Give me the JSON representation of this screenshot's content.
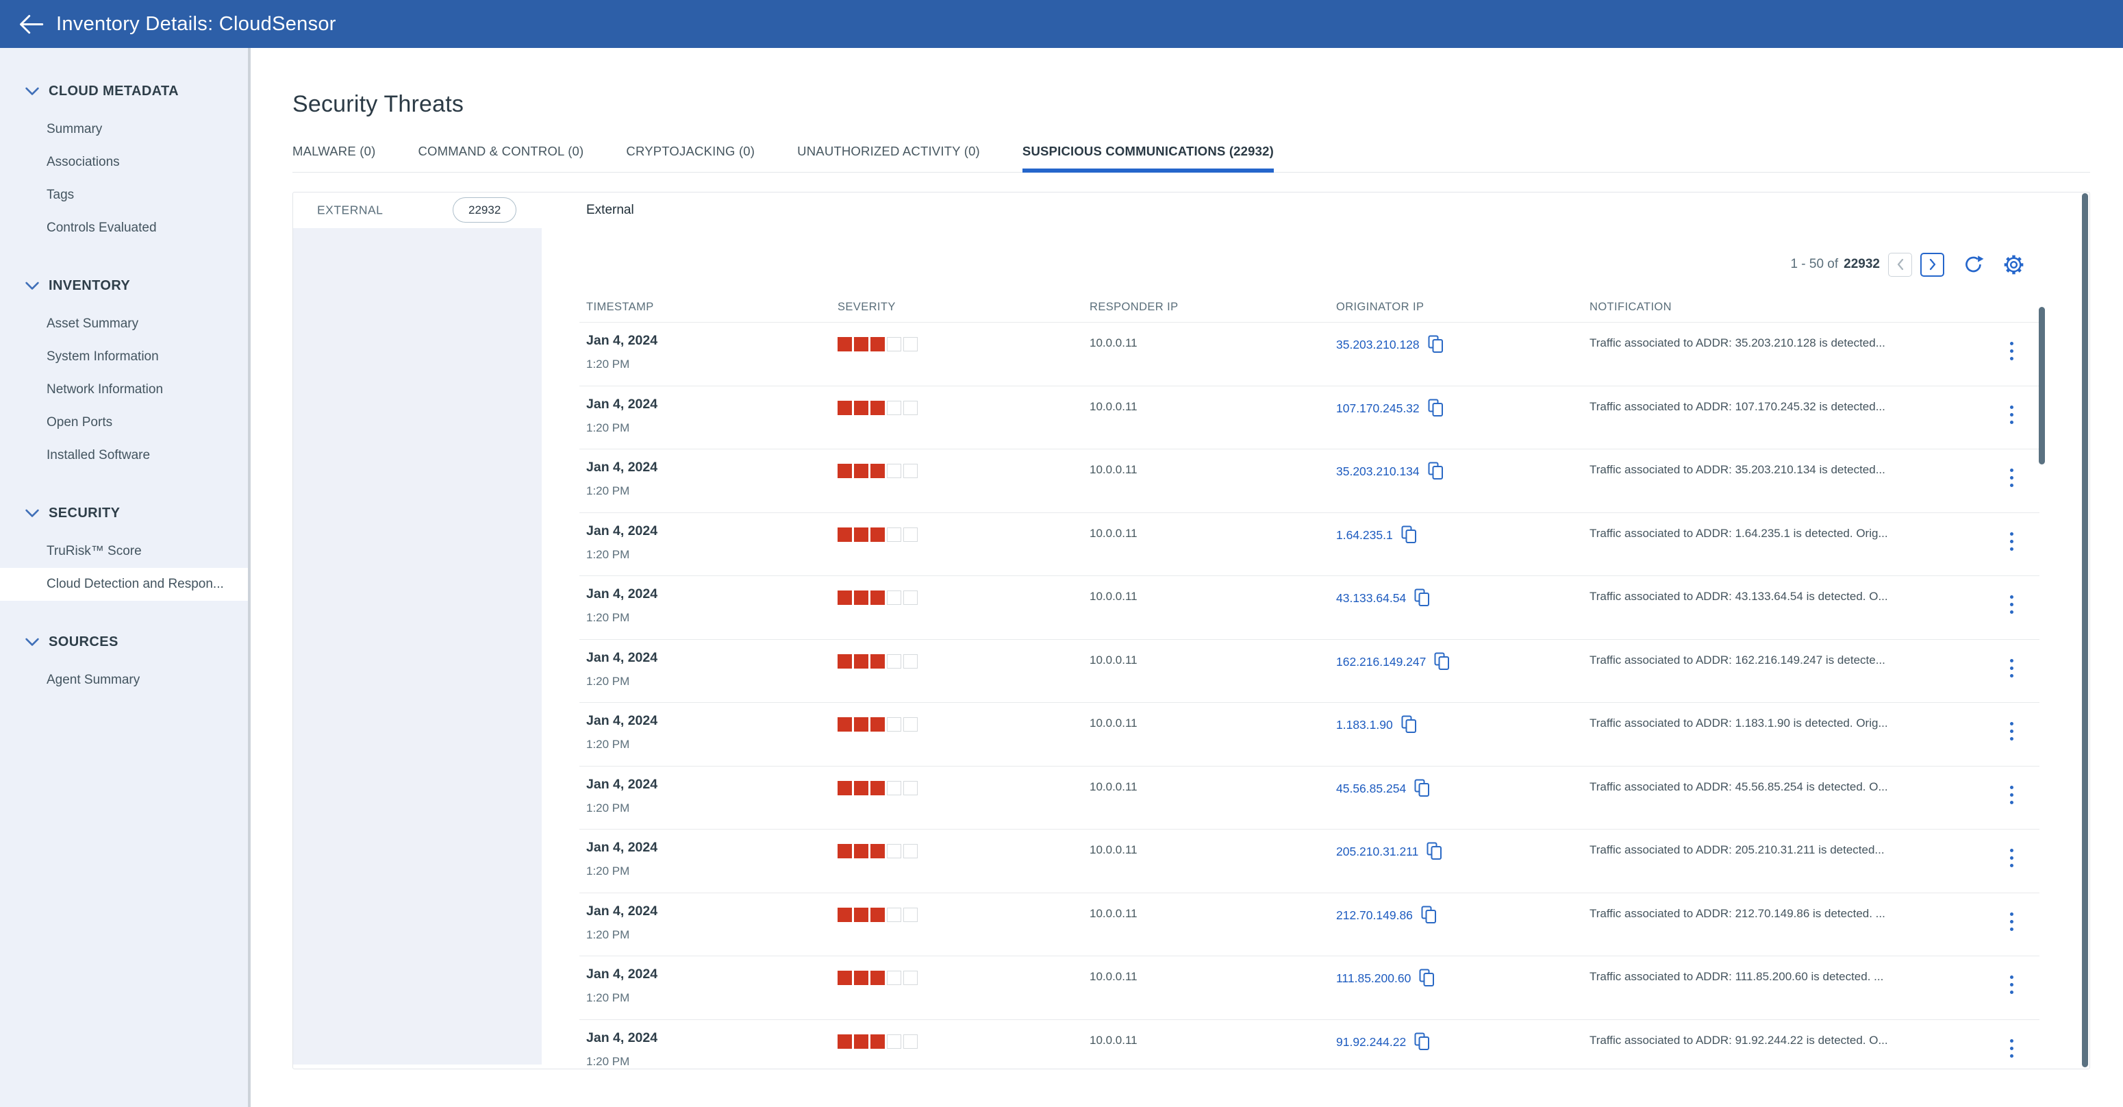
{
  "app": {
    "title": "Inventory Details: CloudSensor"
  },
  "colors": {
    "topbar_blue": "#2d5fa8",
    "accent_blue": "#2566cb",
    "link_blue": "#1d5bbf",
    "severity_red": "#cf3620",
    "sidebar_bg": "#edf1f9",
    "panel_bg": "#eef1f8",
    "scrollbar": "#5a7181"
  },
  "sidebar": {
    "sections": [
      {
        "label": "CLOUD METADATA",
        "items": [
          {
            "label": "Summary"
          },
          {
            "label": "Associations"
          },
          {
            "label": "Tags"
          },
          {
            "label": "Controls Evaluated"
          }
        ]
      },
      {
        "label": "INVENTORY",
        "items": [
          {
            "label": "Asset Summary"
          },
          {
            "label": "System Information"
          },
          {
            "label": "Network Information"
          },
          {
            "label": "Open Ports"
          },
          {
            "label": "Installed Software"
          }
        ]
      },
      {
        "label": "SECURITY",
        "items": [
          {
            "label": "TruRisk™ Score"
          },
          {
            "label": "Cloud Detection and Respon...",
            "selected": true
          }
        ]
      },
      {
        "label": "SOURCES",
        "items": [
          {
            "label": "Agent Summary"
          }
        ]
      }
    ]
  },
  "main": {
    "title": "Security Threats",
    "tabs": [
      {
        "label": "MALWARE (0)"
      },
      {
        "label": "COMMAND & CONTROL (0)"
      },
      {
        "label": "CRYPTOJACKING (0)"
      },
      {
        "label": "UNAUTHORIZED ACTIVITY (0)"
      },
      {
        "label": "SUSPICIOUS COMMUNICATIONS (22932)",
        "active": true
      }
    ],
    "category": {
      "label": "EXTERNAL",
      "count": "22932",
      "detail_title": "External"
    },
    "pagination": {
      "range": "1 - 50 of",
      "total": "22932"
    },
    "table": {
      "columns": [
        "TIMESTAMP",
        "SEVERITY",
        "RESPONDER IP",
        "ORIGINATOR IP",
        "NOTIFICATION"
      ],
      "rows": [
        {
          "date": "Jan 4, 2024",
          "time": "1:20 PM",
          "severity": 3,
          "severity_max": 5,
          "responder_ip": "10.0.0.11",
          "originator_ip": "35.203.210.128",
          "notification": "Traffic associated to ADDR: 35.203.210.128 is detected..."
        },
        {
          "date": "Jan 4, 2024",
          "time": "1:20 PM",
          "severity": 3,
          "severity_max": 5,
          "responder_ip": "10.0.0.11",
          "originator_ip": "107.170.245.32",
          "notification": "Traffic associated to ADDR: 107.170.245.32 is detected..."
        },
        {
          "date": "Jan 4, 2024",
          "time": "1:20 PM",
          "severity": 3,
          "severity_max": 5,
          "responder_ip": "10.0.0.11",
          "originator_ip": "35.203.210.134",
          "notification": "Traffic associated to ADDR: 35.203.210.134 is detected..."
        },
        {
          "date": "Jan 4, 2024",
          "time": "1:20 PM",
          "severity": 3,
          "severity_max": 5,
          "responder_ip": "10.0.0.11",
          "originator_ip": "1.64.235.1",
          "notification": "Traffic associated to ADDR: 1.64.235.1 is detected. Orig..."
        },
        {
          "date": "Jan 4, 2024",
          "time": "1:20 PM",
          "severity": 3,
          "severity_max": 5,
          "responder_ip": "10.0.0.11",
          "originator_ip": "43.133.64.54",
          "notification": "Traffic associated to ADDR: 43.133.64.54 is detected. O..."
        },
        {
          "date": "Jan 4, 2024",
          "time": "1:20 PM",
          "severity": 3,
          "severity_max": 5,
          "responder_ip": "10.0.0.11",
          "originator_ip": "162.216.149.247",
          "notification": "Traffic associated to ADDR: 162.216.149.247 is detecte..."
        },
        {
          "date": "Jan 4, 2024",
          "time": "1:20 PM",
          "severity": 3,
          "severity_max": 5,
          "responder_ip": "10.0.0.11",
          "originator_ip": "1.183.1.90",
          "notification": "Traffic associated to ADDR: 1.183.1.90 is detected. Orig..."
        },
        {
          "date": "Jan 4, 2024",
          "time": "1:20 PM",
          "severity": 3,
          "severity_max": 5,
          "responder_ip": "10.0.0.11",
          "originator_ip": "45.56.85.254",
          "notification": "Traffic associated to ADDR: 45.56.85.254 is detected. O..."
        },
        {
          "date": "Jan 4, 2024",
          "time": "1:20 PM",
          "severity": 3,
          "severity_max": 5,
          "responder_ip": "10.0.0.11",
          "originator_ip": "205.210.31.211",
          "notification": "Traffic associated to ADDR: 205.210.31.211 is detected..."
        },
        {
          "date": "Jan 4, 2024",
          "time": "1:20 PM",
          "severity": 3,
          "severity_max": 5,
          "responder_ip": "10.0.0.11",
          "originator_ip": "212.70.149.86",
          "notification": "Traffic associated to ADDR: 212.70.149.86 is detected. ..."
        },
        {
          "date": "Jan 4, 2024",
          "time": "1:20 PM",
          "severity": 3,
          "severity_max": 5,
          "responder_ip": "10.0.0.11",
          "originator_ip": "111.85.200.60",
          "notification": "Traffic associated to ADDR: 111.85.200.60 is detected. ..."
        },
        {
          "date": "Jan 4, 2024",
          "time": "1:20 PM",
          "severity": 3,
          "severity_max": 5,
          "responder_ip": "10.0.0.11",
          "originator_ip": "91.92.244.22",
          "notification": "Traffic associated to ADDR: 91.92.244.22 is detected. O..."
        }
      ]
    }
  }
}
